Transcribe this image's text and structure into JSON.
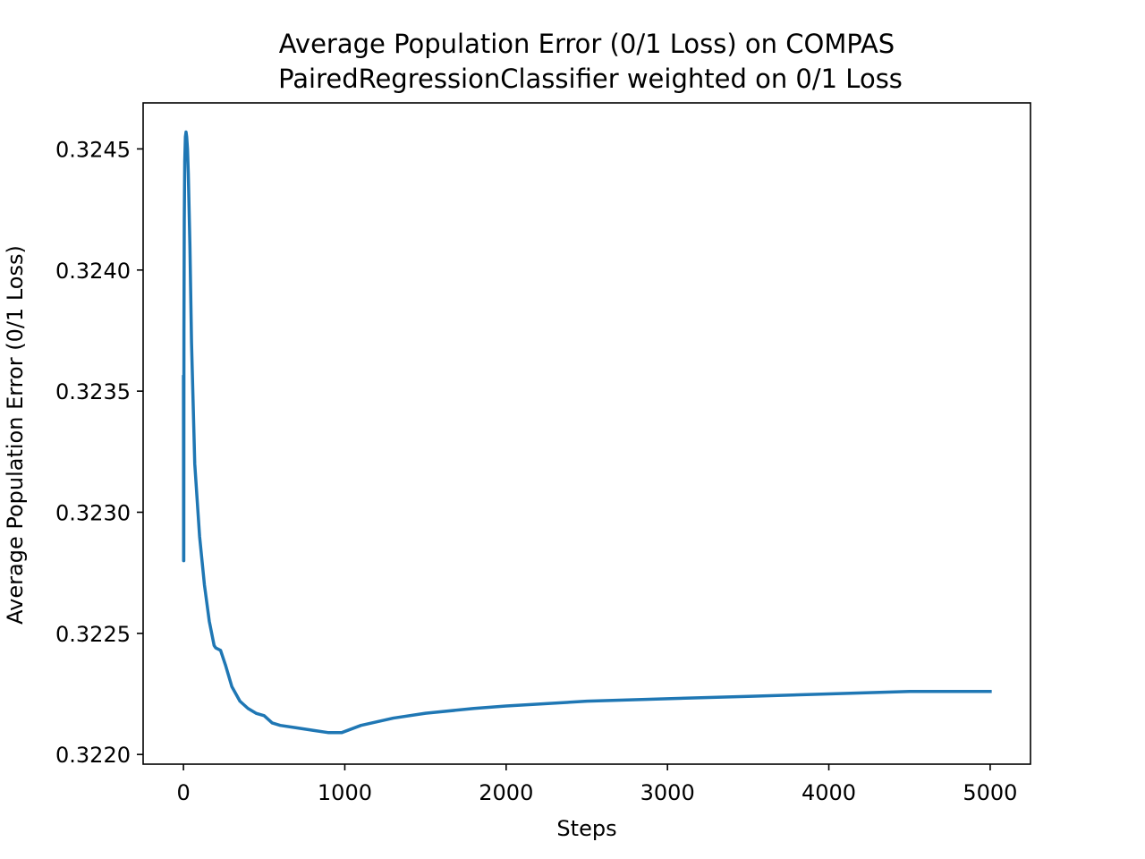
{
  "chart_data": {
    "type": "line",
    "title": "Average Population Error (0/1 Loss) on COMPAS",
    "subtitle": "PairedRegressionClassifier weighted on 0/1 Loss",
    "xlabel": "Steps",
    "ylabel": "Average Population Error (0/1 Loss)",
    "xlim": [
      -250,
      5250
    ],
    "ylim": [
      0.32196,
      0.32469
    ],
    "xticks": [
      0,
      1000,
      2000,
      3000,
      4000,
      5000
    ],
    "xtick_labels": [
      "0",
      "1000",
      "2000",
      "3000",
      "4000",
      "5000"
    ],
    "yticks": [
      0.322,
      0.3225,
      0.323,
      0.3235,
      0.324,
      0.3245
    ],
    "ytick_labels": [
      "0.3220",
      "0.3225",
      "0.3230",
      "0.3235",
      "0.3240",
      "0.3245"
    ],
    "grid": false,
    "legend": "none",
    "color": "#1f77b4",
    "series": [
      {
        "x": [
          0,
          1,
          2,
          3,
          5,
          8,
          12,
          16,
          20,
          25,
          30,
          40,
          50,
          70,
          100,
          130,
          160,
          190,
          200,
          230,
          260,
          300,
          350,
          400,
          450,
          500,
          550,
          600,
          700,
          800,
          900,
          980,
          1100,
          1300,
          1500,
          1800,
          2000,
          2500,
          3000,
          3500,
          4000,
          4500,
          5000
        ],
        "y": [
          0.32356,
          0.3228,
          0.3228,
          0.32375,
          0.3242,
          0.32445,
          0.32455,
          0.32457,
          0.32455,
          0.3245,
          0.3244,
          0.3241,
          0.3237,
          0.3232,
          0.3229,
          0.3227,
          0.32255,
          0.32245,
          0.32244,
          0.32243,
          0.32237,
          0.32228,
          0.32222,
          0.32219,
          0.32217,
          0.32216,
          0.32213,
          0.32212,
          0.32211,
          0.3221,
          0.32209,
          0.32209,
          0.32212,
          0.32215,
          0.32217,
          0.32219,
          0.3222,
          0.32222,
          0.32223,
          0.32224,
          0.32225,
          0.32226,
          0.32226
        ]
      }
    ]
  }
}
